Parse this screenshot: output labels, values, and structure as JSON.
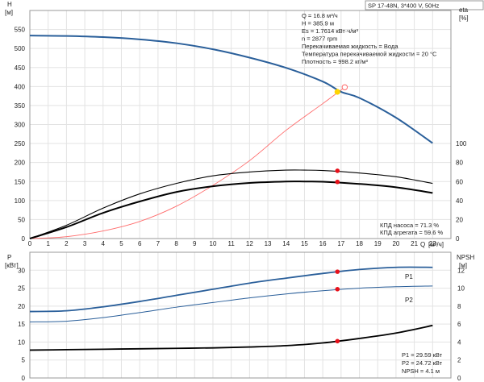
{
  "header": {
    "title": "SP 17-48N, 3*400 V, 50Hz"
  },
  "info_lines": [
    "Q = 16.8 м³/ч",
    "H = 385.9 м",
    "Es = 1.7614 кВт·ч/м³",
    "n = 2877 rpm",
    "Перекачиваемая жидкость = Вода",
    "Температура перекачиваемой жидкости = 20 °C",
    "Плотность = 998.2 кг/м³"
  ],
  "efficiency_info": [
    "КПД насоса = 71.3 %",
    "КПД агрегата = 59.6 %"
  ],
  "power_info": [
    "P1 = 29.59 кВт",
    "P2 = 24.72 кВт",
    "NPSH = 4.1 м"
  ],
  "axis_units": {
    "h_name": "H",
    "h_unit": "[м]",
    "eta_name": "eta",
    "eta_unit": "[%]",
    "q_name": "Q",
    "q_unit": "[м³/ч]",
    "p_name": "P",
    "p_unit": "[кВт]",
    "npsh_name": "NPSH",
    "npsh_unit": "[м]"
  },
  "colors": {
    "head": "#2a5f9a",
    "power": "#2a5f9a",
    "efficiency": "#000000",
    "system": "#ff6b6b",
    "marker": "#e8101a",
    "op_point": "#ffd400"
  },
  "chart_data": [
    {
      "type": "line",
      "title": "",
      "xlabel": "Q [м³/ч]",
      "ylabel": "H [м]",
      "y2label": "eta [%]",
      "xlim": [
        0,
        23
      ],
      "ylim": [
        0,
        600
      ],
      "y2lim": [
        0,
        240
      ],
      "x_ticks": [
        0,
        1,
        2,
        3,
        4,
        5,
        6,
        7,
        8,
        9,
        10,
        11,
        12,
        13,
        14,
        15,
        16,
        17,
        18,
        19,
        20,
        21,
        22
      ],
      "y_ticks": [
        0,
        50,
        100,
        150,
        200,
        250,
        300,
        350,
        400,
        450,
        500,
        550
      ],
      "y2_ticks": [
        0,
        20,
        40,
        60,
        80,
        100
      ],
      "grid": true,
      "series": [
        {
          "key": "head",
          "axis": "y",
          "x": [
            0,
            2,
            4,
            6,
            8,
            10,
            12,
            14,
            16,
            17,
            18,
            20,
            22
          ],
          "values": [
            534,
            533,
            530,
            524,
            514,
            498,
            476,
            449,
            413,
            386,
            370,
            318,
            251
          ]
        },
        {
          "key": "system",
          "axis": "y",
          "x": [
            0,
            2,
            4,
            6,
            8,
            10,
            12,
            14,
            16,
            17.2
          ],
          "values": [
            0,
            5,
            20,
            45,
            85,
            140,
            205,
            285,
            355,
            398
          ]
        },
        {
          "key": "eta_pump",
          "axis": "y2",
          "x": [
            0,
            2,
            4,
            6,
            8,
            10,
            12,
            14,
            15,
            16,
            18,
            20,
            22
          ],
          "values": [
            0,
            14,
            32,
            47,
            58,
            66,
            70,
            72,
            72,
            71.6,
            69,
            65,
            58
          ]
        },
        {
          "key": "eta_unit",
          "axis": "y2",
          "x": [
            0,
            2,
            4,
            6,
            8,
            10,
            12,
            14,
            15,
            16,
            18,
            20,
            22
          ],
          "values": [
            0,
            12,
            27,
            39,
            49,
            55,
            58.5,
            60,
            60,
            59.8,
            57.5,
            54,
            48
          ]
        }
      ],
      "markers": [
        {
          "key": "op_point",
          "axis": "y",
          "x": 16.8,
          "y": 385.9
        },
        {
          "key": "op_ring",
          "axis": "y",
          "x": 17.2,
          "y": 398
        },
        {
          "key": "eta_pump_pt",
          "axis": "y2",
          "x": 16.8,
          "y": 71.3
        },
        {
          "key": "eta_unit_pt",
          "axis": "y2",
          "x": 16.8,
          "y": 59.6
        }
      ]
    },
    {
      "type": "line",
      "title": "",
      "xlabel": "Q [м³/ч]",
      "ylabel": "P [кВт]",
      "y2label": "NPSH [м]",
      "xlim": [
        0,
        23
      ],
      "ylim": [
        0,
        35
      ],
      "y2lim": [
        0,
        14
      ],
      "y_ticks": [
        0,
        5,
        10,
        15,
        20,
        25,
        30
      ],
      "y2_ticks": [
        0,
        2,
        4,
        6,
        8,
        10,
        12
      ],
      "grid": true,
      "series": [
        {
          "key": "p1",
          "name": "P1",
          "axis": "y",
          "x": [
            0,
            2,
            4,
            6,
            8,
            10,
            12,
            14,
            16,
            18,
            20,
            22
          ],
          "values": [
            18.5,
            18.7,
            19.8,
            21.3,
            23.0,
            24.7,
            26.4,
            27.8,
            29.1,
            30.2,
            30.8,
            30.8
          ]
        },
        {
          "key": "p2",
          "name": "P2",
          "axis": "y",
          "x": [
            0,
            2,
            4,
            6,
            8,
            10,
            12,
            14,
            16,
            18,
            20,
            22
          ],
          "values": [
            15.6,
            15.8,
            16.8,
            18.2,
            19.7,
            21.0,
            22.3,
            23.4,
            24.3,
            25.0,
            25.4,
            25.6
          ]
        },
        {
          "key": "npsh",
          "axis": "y2",
          "x": [
            0,
            2,
            4,
            6,
            8,
            10,
            12,
            14,
            16,
            18,
            20,
            22
          ],
          "values": [
            3.1,
            3.15,
            3.2,
            3.25,
            3.3,
            3.35,
            3.45,
            3.6,
            3.9,
            4.4,
            5.0,
            5.85
          ]
        }
      ],
      "markers": [
        {
          "key": "p1_pt",
          "axis": "y",
          "x": 16.8,
          "y": 29.59
        },
        {
          "key": "p2_pt",
          "axis": "y",
          "x": 16.8,
          "y": 24.72
        },
        {
          "key": "npsh_pt",
          "axis": "y2",
          "x": 16.8,
          "y": 4.1
        }
      ]
    }
  ]
}
